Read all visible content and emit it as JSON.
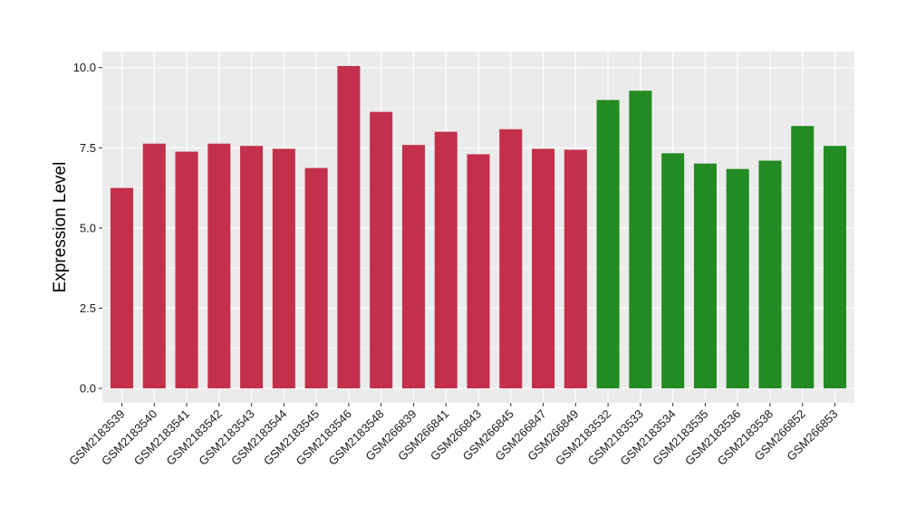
{
  "chart_data": {
    "type": "bar",
    "title": "",
    "xlabel": "",
    "ylabel": "Expression Level",
    "ylim": [
      -0.45,
      10.5
    ],
    "yticks": [
      0.0,
      2.5,
      5.0,
      7.5,
      10.0
    ],
    "ytick_labels": [
      "0.0",
      "2.5",
      "5.0",
      "7.5",
      "10.0"
    ],
    "grid": true,
    "legend": "none",
    "colors": {
      "group_1": "#C3304B",
      "group_2": "#228B22",
      "panel": "#EBEBEB",
      "grid": "#FFFFFF"
    },
    "categories": [
      "GSM2183539",
      "GSM2183540",
      "GSM2183541",
      "GSM2183542",
      "GSM2183543",
      "GSM2183544",
      "GSM2183545",
      "GSM2183546",
      "GSM2183548",
      "GSM266839",
      "GSM266841",
      "GSM266843",
      "GSM266845",
      "GSM266847",
      "GSM266849",
      "GSM2183532",
      "GSM2183533",
      "GSM2183534",
      "GSM2183535",
      "GSM2183536",
      "GSM2183538",
      "GSM266852",
      "GSM266853"
    ],
    "values": [
      6.25,
      7.63,
      7.38,
      7.63,
      7.56,
      7.47,
      6.87,
      10.05,
      8.62,
      7.59,
      8.0,
      7.3,
      8.08,
      7.47,
      7.44,
      8.99,
      9.28,
      7.33,
      7.01,
      6.84,
      7.1,
      8.18,
      7.56
    ],
    "groups": [
      1,
      1,
      1,
      1,
      1,
      1,
      1,
      1,
      1,
      1,
      1,
      1,
      1,
      1,
      1,
      2,
      2,
      2,
      2,
      2,
      2,
      2,
      2
    ]
  }
}
